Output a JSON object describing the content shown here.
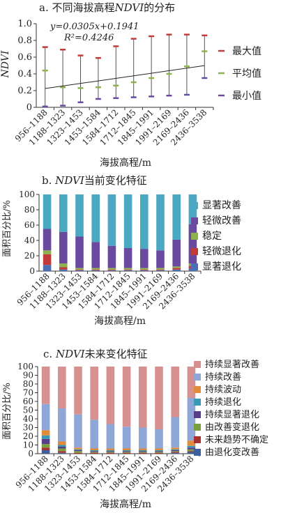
{
  "categories": [
    "956–1188",
    "1188–1323",
    "1323–1453",
    "1453–1584",
    "1584–1712",
    "1712–1845",
    "1845–1991",
    "1991–2169",
    "2169–2436",
    "2436–3538"
  ],
  "chart_data": [
    {
      "type": "line",
      "title": "a. 不同海拔高程NDVI的分布",
      "title_prefix": "a. 不同海拔高程",
      "title_em": "NDVI",
      "title_suffix": "的分布",
      "xlabel": "海拔高程/m",
      "ylabel": "NDVI",
      "ylim": [
        0,
        1.0
      ],
      "yticks": [
        "0",
        "0.2",
        "0.4",
        "0.6",
        "0.8",
        "1.0"
      ],
      "equation": "y=0.0305x+0.1941",
      "r2_label": "R²=0.4246",
      "trend": {
        "slope": 0.0305,
        "intercept": 0.1941
      },
      "series": [
        {
          "name": "最大值",
          "color": "#c23b3b",
          "values": [
            0.72,
            0.69,
            0.62,
            0.59,
            0.73,
            0.82,
            0.85,
            0.87,
            0.87,
            0.86
          ]
        },
        {
          "name": "平均值",
          "color": "#8db24b",
          "values": [
            0.44,
            0.24,
            0.23,
            0.24,
            0.26,
            0.3,
            0.35,
            0.4,
            0.49,
            0.67
          ]
        },
        {
          "name": "最小值",
          "color": "#6a4aa0",
          "values": [
            0.01,
            0.02,
            0.06,
            0.1,
            0.11,
            0.12,
            0.13,
            0.14,
            0.15,
            0.35
          ]
        }
      ]
    },
    {
      "type": "bar",
      "stacked": true,
      "title": "b. NDVI当前变化特征",
      "title_prefix": "b. ",
      "title_em": "NDVI",
      "title_suffix": "当前变化特征",
      "xlabel": "海拔高程/m",
      "ylabel": "面积百分比/%",
      "ylim": [
        0,
        100
      ],
      "yticks": [
        "0",
        "20",
        "40",
        "60",
        "80",
        "100"
      ],
      "series": [
        {
          "name": "显著退化",
          "color": "#4b6fb5",
          "values": [
            8,
            2,
            1,
            1,
            1,
            1,
            1,
            1,
            2,
            3
          ]
        },
        {
          "name": "轻微退化",
          "color": "#c23b3b",
          "values": [
            14,
            3,
            1,
            1,
            1,
            1,
            1,
            1,
            2,
            4
          ]
        },
        {
          "name": "稳定",
          "color": "#8db24b",
          "values": [
            5,
            5,
            2,
            2,
            2,
            2,
            2,
            2,
            2,
            3
          ]
        },
        {
          "name": "轻微改善",
          "color": "#6a4aa0",
          "values": [
            28,
            41,
            41,
            34,
            29,
            26,
            25,
            23,
            35,
            51
          ]
        },
        {
          "name": "显著改善",
          "color": "#4aa8c2",
          "values": [
            45,
            49,
            55,
            62,
            67,
            70,
            71,
            73,
            59,
            39
          ]
        }
      ]
    },
    {
      "type": "bar",
      "stacked": true,
      "title": "c. NDVI未来变化特征",
      "title_prefix": "c. ",
      "title_em": "NDVI",
      "title_suffix": "未来变化特征",
      "xlabel": "海拔高程/m",
      "ylabel": "面积百分比/%",
      "ylim": [
        0,
        100
      ],
      "yticks": [
        "0",
        "10",
        "20",
        "30",
        "40",
        "50",
        "60",
        "70",
        "80",
        "90",
        "100"
      ],
      "series": [
        {
          "name": "由退化变改善",
          "color": "#3e5f9e",
          "values": [
            4,
            1,
            0,
            0,
            0,
            0,
            0,
            0,
            1,
            2
          ]
        },
        {
          "name": "未来趋势不确定",
          "color": "#a83232",
          "values": [
            3,
            2,
            1,
            1,
            1,
            1,
            1,
            1,
            1,
            1
          ]
        },
        {
          "name": "由改善变退化",
          "color": "#7a9e3e",
          "values": [
            4,
            3,
            2,
            1,
            1,
            1,
            1,
            1,
            1,
            2
          ]
        },
        {
          "name": "持续显著退化",
          "color": "#5a3d8a",
          "values": [
            6,
            2,
            1,
            1,
            1,
            1,
            1,
            1,
            1,
            2
          ]
        },
        {
          "name": "持续退化",
          "color": "#3a9ab5",
          "values": [
            4,
            2,
            1,
            1,
            1,
            1,
            1,
            1,
            1,
            2
          ]
        },
        {
          "name": "持续波动",
          "color": "#e08a3a",
          "values": [
            6,
            4,
            2,
            2,
            2,
            2,
            2,
            2,
            2,
            6
          ]
        },
        {
          "name": "持续改善",
          "color": "#8fa7d6",
          "values": [
            30,
            38,
            38,
            33,
            28,
            25,
            24,
            22,
            35,
            49
          ]
        },
        {
          "name": "持续显著改善",
          "color": "#d79191",
          "values": [
            43,
            48,
            55,
            61,
            66,
            69,
            70,
            72,
            58,
            36
          ]
        }
      ]
    }
  ]
}
